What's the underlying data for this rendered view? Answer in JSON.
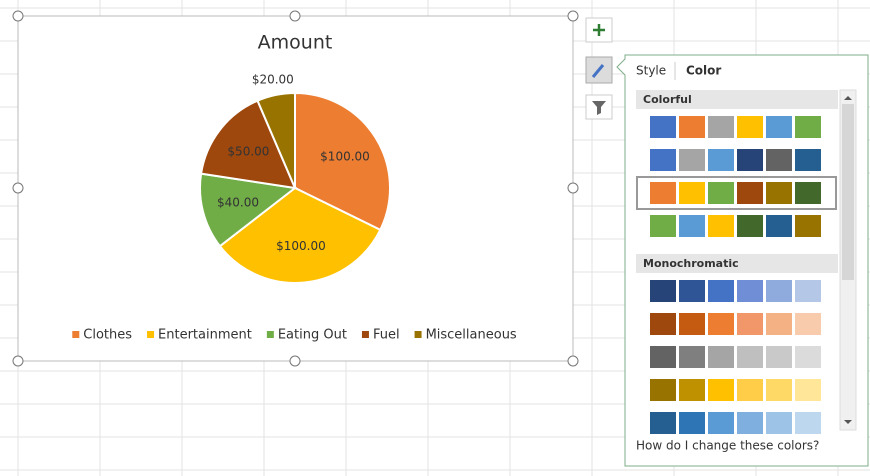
{
  "chart_data": {
    "type": "pie",
    "title": "Amount",
    "categories": [
      "Clothes",
      "Entertainment",
      "Eating Out",
      "Fuel",
      "Miscellaneous"
    ],
    "values": [
      100,
      100,
      40,
      50,
      20
    ],
    "value_labels": [
      "$100.00",
      "$100.00",
      "$40.00",
      "$50.00",
      "$20.00"
    ],
    "colors": [
      "#ED7D31",
      "#FFC000",
      "#70AD47",
      "#9E480E",
      "#997300"
    ],
    "legend": "bottom"
  },
  "panel": {
    "tabs": [
      "Style",
      "Color"
    ],
    "active_tab": "Color",
    "sections": [
      {
        "title": "Colorful",
        "selected_row": 2,
        "rows": [
          [
            "#4472C4",
            "#ED7D31",
            "#A5A5A5",
            "#FFC000",
            "#5B9BD5",
            "#70AD47"
          ],
          [
            "#4472C4",
            "#A5A5A5",
            "#5B9BD5",
            "#264478",
            "#636363",
            "#255E91"
          ],
          [
            "#ED7D31",
            "#FFC000",
            "#70AD47",
            "#9E480E",
            "#997300",
            "#43682B"
          ],
          [
            "#70AD47",
            "#5B9BD5",
            "#FFC000",
            "#43682B",
            "#255E91",
            "#997300"
          ]
        ]
      },
      {
        "title": "Monochromatic",
        "rows": [
          [
            "#264478",
            "#2F5597",
            "#4472C4",
            "#6F8ED6",
            "#8FAADC",
            "#B4C7E7"
          ],
          [
            "#9E480E",
            "#C55A11",
            "#ED7D31",
            "#F1976A",
            "#F4B183",
            "#F8CBAD"
          ],
          [
            "#636363",
            "#7F7F7F",
            "#A5A5A5",
            "#BFBFBF",
            "#C9C9C9",
            "#DBDBDB"
          ],
          [
            "#997300",
            "#BF9000",
            "#FFC000",
            "#FFCD47",
            "#FFD966",
            "#FFE699"
          ],
          [
            "#255E91",
            "#2E75B6",
            "#5B9BD5",
            "#7EAFDE",
            "#9DC3E6",
            "#BDD7EE"
          ]
        ]
      }
    ],
    "help_link": "How do I change these colors?"
  }
}
